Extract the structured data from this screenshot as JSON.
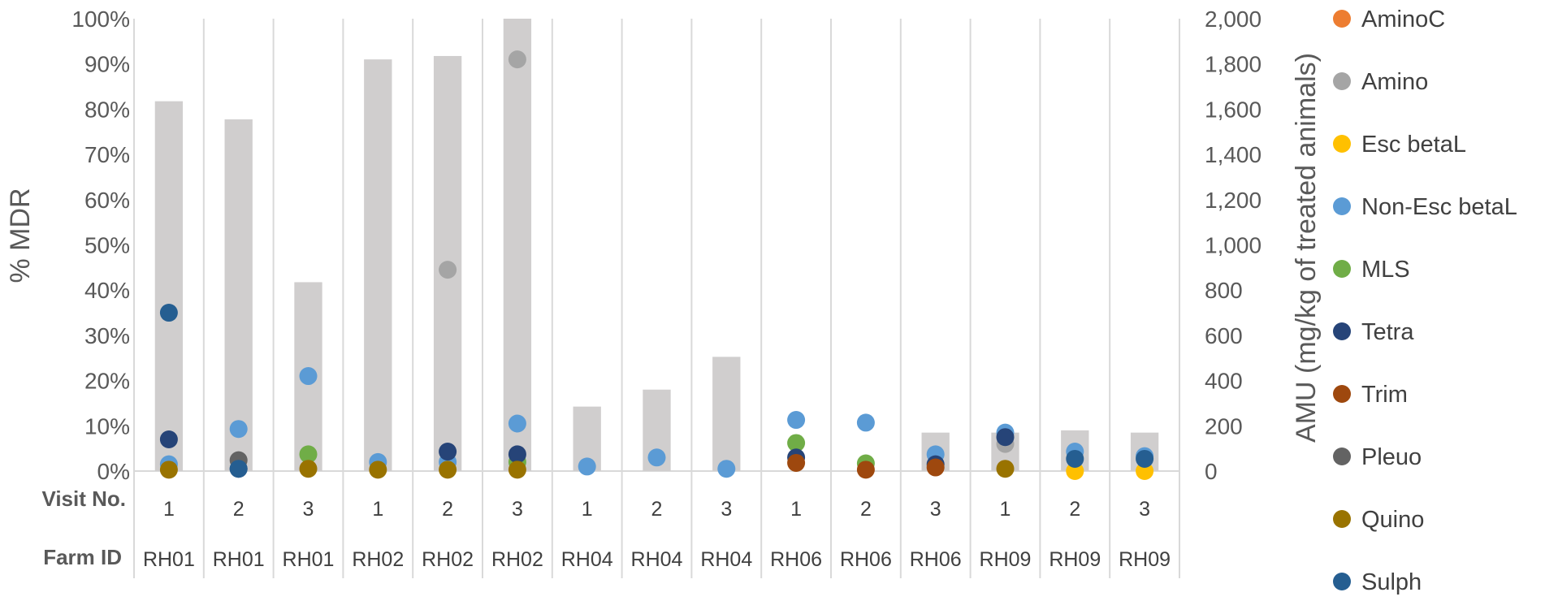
{
  "chart_data": {
    "type": "bar+scatter",
    "categories": [
      "1",
      "2",
      "3",
      "1",
      "2",
      "3",
      "1",
      "2",
      "3",
      "1",
      "2",
      "3",
      "1",
      "2",
      "3"
    ],
    "row_visit_title": "Visit No.",
    "row_farm_title": "Farm ID",
    "visits": [
      "1",
      "2",
      "3",
      "1",
      "2",
      "3",
      "1",
      "2",
      "3",
      "1",
      "2",
      "3",
      "1",
      "2",
      "3"
    ],
    "farms": [
      "RH01",
      "RH01",
      "RH01",
      "RH02",
      "RH02",
      "RH02",
      "RH04",
      "RH04",
      "RH04",
      "RH06",
      "RH06",
      "RH06",
      "RH09",
      "RH09",
      "RH09"
    ],
    "y_left_label": "% MDR",
    "y_left_ticks": [
      "0%",
      "10%",
      "20%",
      "30%",
      "40%",
      "50%",
      "60%",
      "70%",
      "80%",
      "90%",
      "100%"
    ],
    "y_left_lim": [
      0,
      100
    ],
    "y_right_label": "AMU (mg/kg of treated animals)",
    "y_right_ticks": [
      "0",
      "200",
      "400",
      "600",
      "800",
      "1,000",
      "1,200",
      "1,400",
      "1,600",
      "1,800",
      "2,000"
    ],
    "y_right_lim": [
      0,
      2000
    ],
    "bars": {
      "axis": "right",
      "color": "#d0cece",
      "values": [
        1635,
        1555,
        835,
        1820,
        1835,
        2000,
        285,
        360,
        505,
        0,
        0,
        170,
        170,
        180,
        170
      ]
    },
    "series": [
      {
        "name": "AminoC",
        "color": "#ed7d31",
        "values": [
          null,
          null,
          null,
          null,
          null,
          null,
          null,
          null,
          null,
          null,
          null,
          null,
          null,
          null,
          null
        ]
      },
      {
        "name": "Amino",
        "color": "#a5a5a5",
        "values": [
          null,
          null,
          null,
          null,
          44.5,
          91,
          null,
          null,
          null,
          null,
          null,
          null,
          6,
          null,
          null
        ]
      },
      {
        "name": "Esc betaL",
        "color": "#ffc000",
        "values": [
          null,
          null,
          null,
          null,
          null,
          null,
          null,
          null,
          null,
          null,
          null,
          null,
          null,
          0,
          0
        ]
      },
      {
        "name": "Non-Esc betaL",
        "color": "#5b9bd5",
        "values": [
          1.5,
          9.3,
          21,
          2,
          2,
          10.5,
          1,
          3,
          0.5,
          11.3,
          10.7,
          3.7,
          8.5,
          4.3,
          3.3
        ]
      },
      {
        "name": "MLS",
        "color": "#70ad47",
        "values": [
          null,
          null,
          3.7,
          null,
          null,
          2,
          null,
          null,
          null,
          6.2,
          1.7,
          null,
          null,
          null,
          null
        ]
      },
      {
        "name": "Tetra",
        "color": "#264478",
        "values": [
          7,
          0.5,
          null,
          null,
          4.3,
          3.7,
          null,
          null,
          null,
          3,
          null,
          1.5,
          7.5,
          null,
          null
        ]
      },
      {
        "name": "Trim",
        "color": "#9e480e",
        "values": [
          null,
          null,
          null,
          null,
          null,
          null,
          null,
          null,
          null,
          1.8,
          0.3,
          0.8,
          null,
          null,
          null
        ]
      },
      {
        "name": "Pleuo",
        "color": "#636363",
        "values": [
          null,
          2.4,
          null,
          null,
          null,
          null,
          null,
          null,
          null,
          null,
          null,
          null,
          null,
          null,
          null
        ]
      },
      {
        "name": "Quino",
        "color": "#997300",
        "values": [
          0.3,
          null,
          0.5,
          0.3,
          0.3,
          0.3,
          null,
          null,
          null,
          null,
          null,
          null,
          0.5,
          null,
          null
        ]
      },
      {
        "name": "Sulph",
        "color": "#255e91",
        "values": [
          35,
          0.5,
          null,
          null,
          null,
          null,
          null,
          null,
          null,
          null,
          null,
          null,
          null,
          2.7,
          2.7
        ]
      }
    ]
  }
}
